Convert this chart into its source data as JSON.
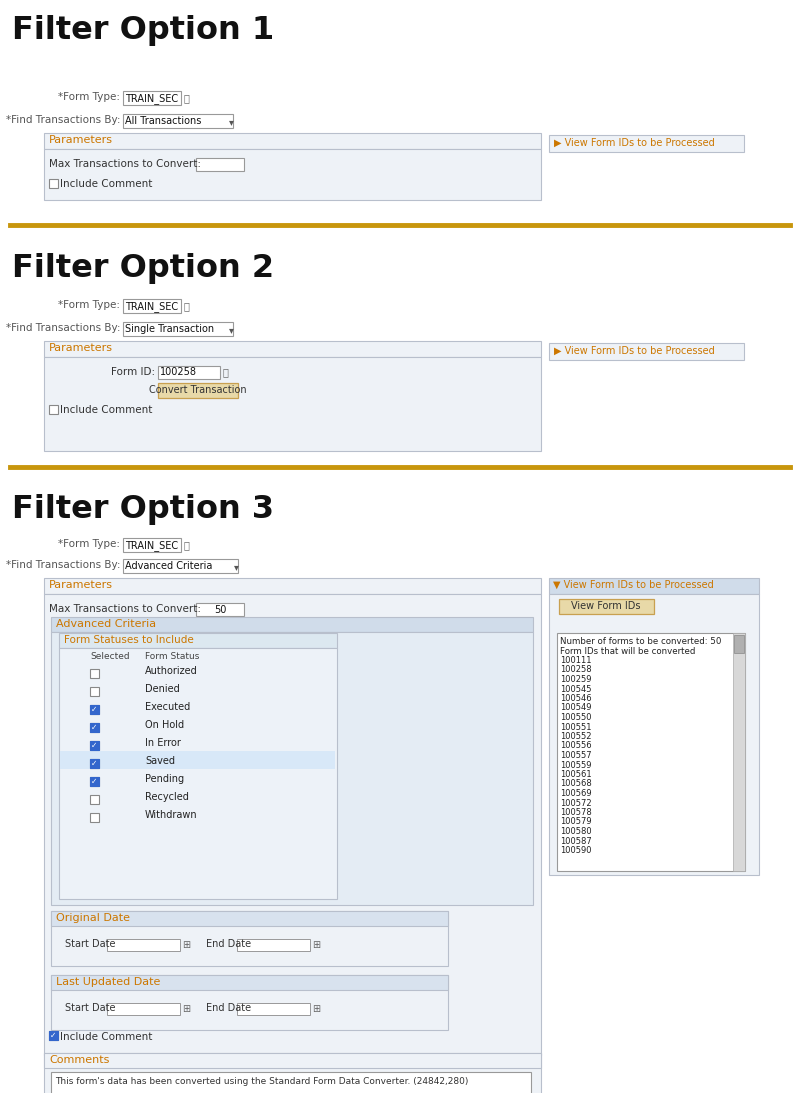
{
  "bg_color": "#ffffff",
  "gold_line_color": "#c8960c",
  "orange_color": "#cc7700",
  "panel_bg": "#eef2f7",
  "panel_border": "#b8bfcc",
  "section_header_color": "#cc7700",
  "adv_bg": "#e4ecf4",
  "adv_header_bg": "#d0dcea",
  "fst_bg": "#edf2f8",
  "fst_header_bg": "#dce8f0",
  "orig_bg": "#eef2f7",
  "orig_header_bg": "#d8e2ee",
  "button_bg": "#e8d9a8",
  "button_border": "#c8a050",
  "blue_check": "#3366cc",
  "input_border": "#999999",
  "scrollbar_bg": "#d8d8d8",
  "scrollbar_thumb": "#b0b0b0",
  "label_color": "#555555",
  "text_color": "#333333",
  "form_ids": [
    "Number of forms to be converted: 50",
    "Form IDs that will be converted",
    "100111",
    "100258",
    "100259",
    "100545",
    "100546",
    "100549",
    "100550",
    "100551",
    "100552",
    "100556",
    "100557",
    "100559",
    "100561",
    "100568",
    "100569",
    "100572",
    "100578",
    "100579",
    "100580",
    "100587",
    "100590"
  ],
  "statuses": [
    "Authorized",
    "Denied",
    "Executed",
    "On Hold",
    "In Error",
    "Saved",
    "Pending",
    "Recycled",
    "Withdrawn"
  ],
  "checked": [
    false,
    false,
    true,
    true,
    true,
    true,
    true,
    false,
    false
  ],
  "comment_text": "This form's data has been converted using the Standard Form Data Converter. (24842,280)"
}
